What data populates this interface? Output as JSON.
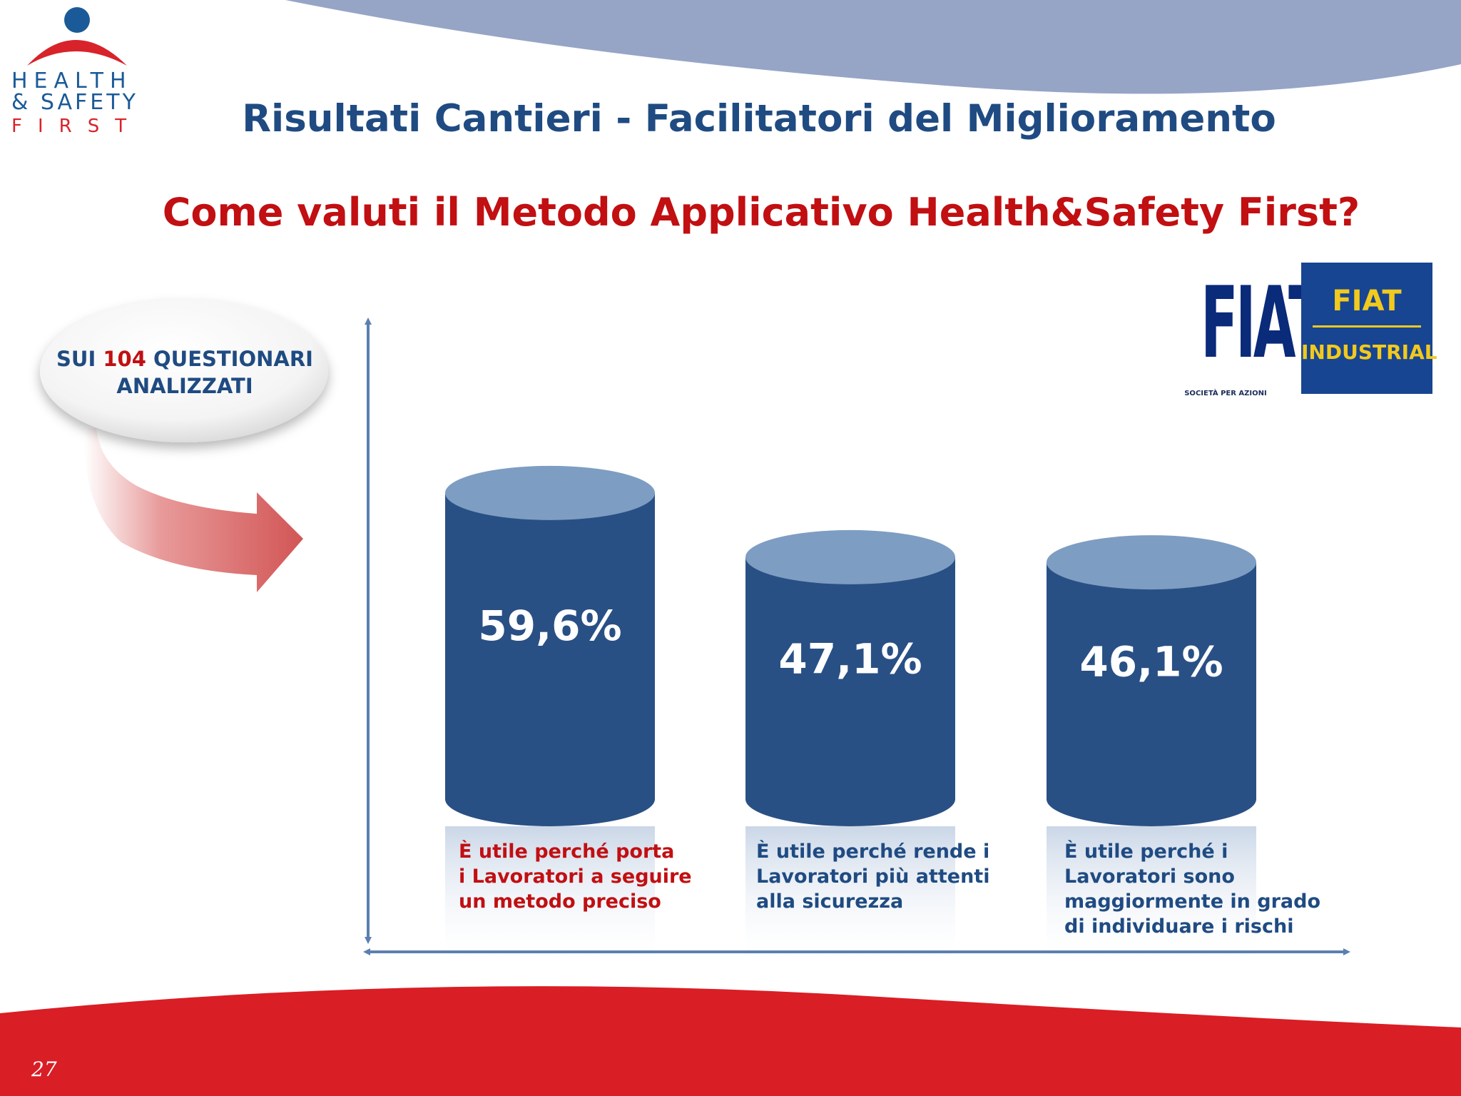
{
  "logo": {
    "line1": "HEALTH",
    "line2": "& SAFETY",
    "line3": "FIRST"
  },
  "title": "Risultati Cantieri - Facilitatori del Miglioramento",
  "subtitle": "Come valuti il Metodo Applicativo Health&Safety First?",
  "callout": {
    "prefix": "SUI ",
    "number": "104",
    "suffix1": " QUESTIONARI",
    "suffix2": "ANALIZZATI"
  },
  "partner_logos": {
    "fiat_word": "FIAT",
    "fiat_caption": "SOCIETÀ PER AZIONI",
    "fiat_industrial_top": "FIAT",
    "fiat_industrial_bottom": "INDUSTRIAL"
  },
  "page_number": "27",
  "colors": {
    "title_blue": "#1f4b82",
    "accent_red": "#c10f12",
    "bar_body": "#295085",
    "bar_top": "#7e9dc2",
    "axis": "#5b7fb0",
    "top_band": "#96a4c6",
    "bottom_band": "#d91e25"
  },
  "chart_data": {
    "type": "bar",
    "bar_style": "cylinder",
    "title": "",
    "xlabel": "",
    "ylabel": "",
    "ylim": [
      0,
      75
    ],
    "grid": false,
    "categories": [
      "È utile perché porta\ni Lavoratori a seguire\nun metodo preciso",
      "È utile perché rende i\nLavoratori più attenti\nalla sicurezza",
      "È utile perché i\nLavoratori sono\nmaggiormente in grado\ndi individuare i rischi"
    ],
    "values": [
      59.6,
      47.1,
      46.1
    ],
    "data_labels": [
      "59,6%",
      "47,1%",
      "46,1%"
    ]
  }
}
